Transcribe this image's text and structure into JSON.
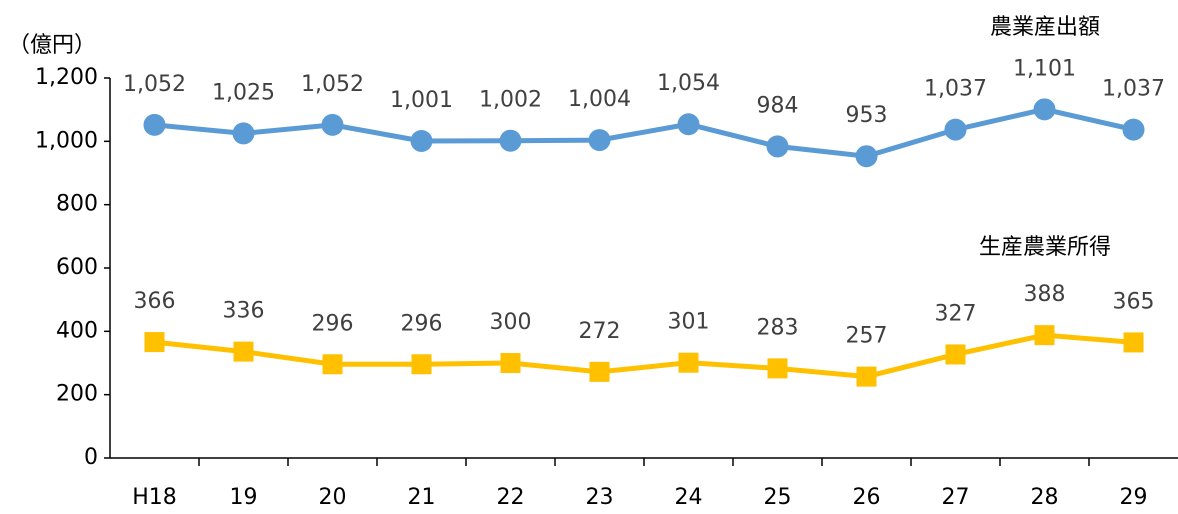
{
  "chart_data": {
    "type": "line",
    "y_axis_label": "（億円）",
    "categories": [
      "H18",
      "19",
      "20",
      "21",
      "22",
      "23",
      "24",
      "25",
      "26",
      "27",
      "28",
      "29"
    ],
    "series": [
      {
        "name": "農業産出額",
        "color": "#5b9bd5",
        "marker": "circle",
        "values": [
          1052,
          1025,
          1052,
          1001,
          1002,
          1004,
          1054,
          984,
          953,
          1037,
          1101,
          1037
        ],
        "value_labels": [
          "1,052",
          "1,025",
          "1,052",
          "1,001",
          "1,002",
          "1,004",
          "1,054",
          "984",
          "953",
          "1,037",
          "1,101",
          "1,037"
        ]
      },
      {
        "name": "生産農業所得",
        "color": "#ffc000",
        "marker": "square",
        "values": [
          366,
          336,
          296,
          296,
          300,
          272,
          301,
          283,
          257,
          327,
          388,
          365
        ]
      }
    ],
    "ylim": [
      0,
      1200
    ],
    "yticks": [
      0,
      200,
      400,
      600,
      800,
      {
        "value": 1000,
        "label": "1,000"
      },
      {
        "value": 1200,
        "label": "1,200"
      }
    ],
    "grid": false
  }
}
